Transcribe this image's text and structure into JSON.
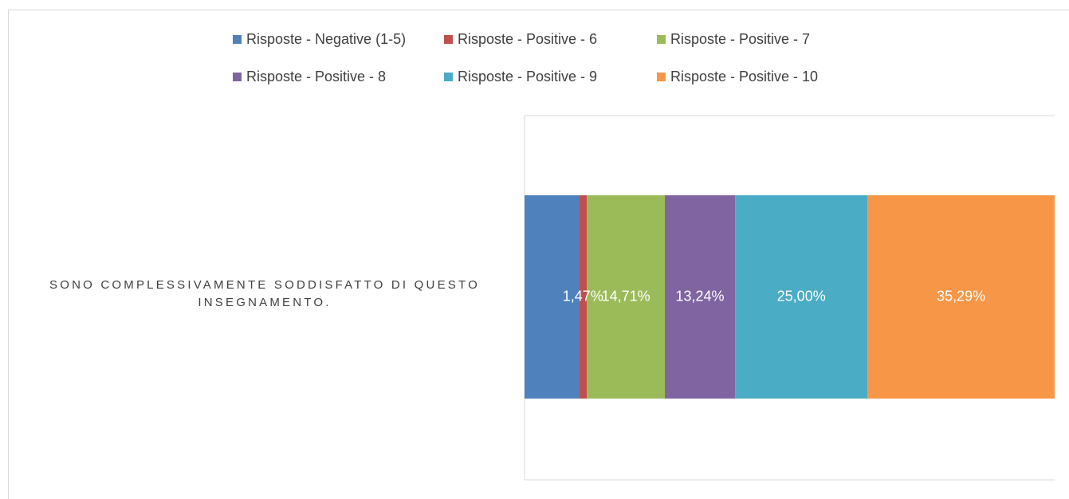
{
  "chart_data": {
    "type": "stacked-bar-horizontal",
    "categories": [
      "SONO COMPLESSIVAMENTE SODDISFATTO DI QUESTO INSEGNAMENTO."
    ],
    "series": [
      {
        "name": "Risposte - Negative (1-5)",
        "color": "#4f81bd",
        "values": [
          10.29
        ]
      },
      {
        "name": "Risposte - Positive - 6",
        "color": "#c0504d",
        "values": [
          1.47
        ],
        "value_labels": [
          "1,47%"
        ]
      },
      {
        "name": "Risposte - Positive - 7",
        "color": "#9bbb59",
        "values": [
          14.71
        ],
        "value_labels": [
          "14,71%"
        ]
      },
      {
        "name": "Risposte - Positive - 8",
        "color": "#8064a2",
        "values": [
          13.24
        ],
        "value_labels": [
          "13,24%"
        ]
      },
      {
        "name": "Risposte - Positive - 9",
        "color": "#4bacc6",
        "values": [
          25.0
        ],
        "value_labels": [
          "25,00%"
        ]
      },
      {
        "name": "Risposte - Positive - 10",
        "color": "#f79646",
        "values": [
          35.29
        ],
        "value_labels": [
          "35,29%"
        ]
      }
    ],
    "xlim": [
      0,
      100
    ],
    "legend": "top"
  }
}
